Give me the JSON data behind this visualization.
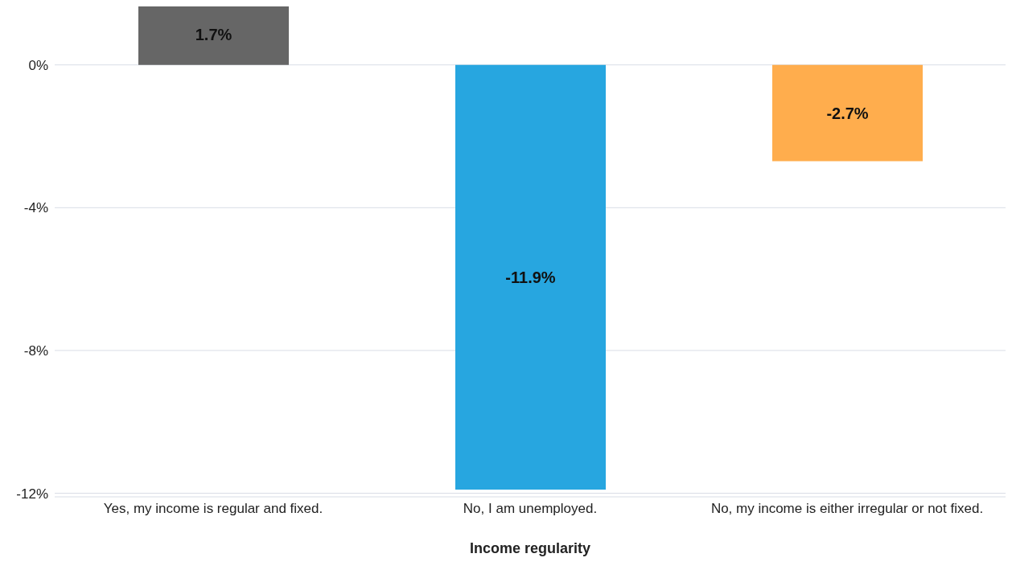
{
  "chart_data": {
    "type": "bar",
    "xlabel": "Income regularity",
    "categories": [
      "Yes, my income is regular and fixed.",
      "No, I am unemployed.",
      "No, my income is either irregular or not fixed."
    ],
    "values": [
      1.7,
      -11.9,
      -2.7
    ],
    "colors": [
      "#666666",
      "#27a6e0",
      "#ffad4d"
    ],
    "value_labels": [
      "1.7%",
      "-11.9%",
      "-2.7%"
    ],
    "ylim": [
      -12.1,
      1.75
    ],
    "yticks": [
      {
        "value": -12,
        "label": "-12%"
      },
      {
        "value": -8,
        "label": "-8%"
      },
      {
        "value": -4,
        "label": "-4%"
      },
      {
        "value": 0,
        "label": "0%"
      }
    ],
    "grid": "y"
  }
}
